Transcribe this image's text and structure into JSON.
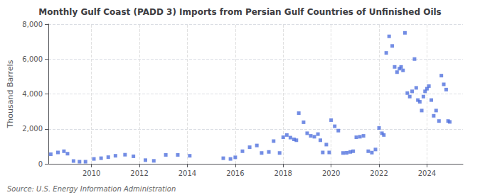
{
  "chart_data": {
    "type": "scatter",
    "title": "Monthly Gulf Coast (PADD 3) Imports from Persian Gulf Countries of Unfinished Oils",
    "ylabel": "Thousand Barrels",
    "annotations": [
      "Source: U.S. Energy Information Administration"
    ],
    "marker": "square",
    "grid": true,
    "xlim": [
      2008.2,
      2025.5
    ],
    "xticks": [
      2010,
      2012,
      2014,
      2016,
      2018,
      2020,
      2022,
      2024
    ],
    "ylim": [
      0,
      8000
    ],
    "yticks": [
      0,
      {
        "value": 2000,
        "label": "2,000"
      },
      {
        "value": 4000,
        "label": "4,000"
      },
      {
        "value": 6000,
        "label": "6,000"
      },
      {
        "value": 8000,
        "label": "8,000"
      }
    ],
    "x": [
      2008.3,
      2008.6,
      2008.85,
      2009.0,
      2009.25,
      2009.5,
      2009.75,
      2010.1,
      2010.4,
      2010.7,
      2011.0,
      2011.4,
      2011.75,
      2012.25,
      2012.6,
      2013.1,
      2013.6,
      2014.1,
      2015.5,
      2015.8,
      2016.0,
      2016.3,
      2016.6,
      2016.9,
      2017.1,
      2017.4,
      2017.6,
      2017.85,
      2018.0,
      2018.15,
      2018.3,
      2018.45,
      2018.55,
      2018.65,
      2018.85,
      2019.0,
      2019.15,
      2019.3,
      2019.45,
      2019.55,
      2019.65,
      2019.8,
      2019.92,
      2020.0,
      2020.15,
      2020.3,
      2020.5,
      2020.65,
      2020.8,
      2020.92,
      2021.05,
      2021.2,
      2021.35,
      2021.55,
      2021.7,
      2021.85,
      2022.0,
      2022.12,
      2022.2,
      2022.3,
      2022.42,
      2022.55,
      2022.65,
      2022.75,
      2022.85,
      2022.92,
      2023.0,
      2023.08,
      2023.18,
      2023.28,
      2023.38,
      2023.48,
      2023.55,
      2023.62,
      2023.7,
      2023.78,
      2023.85,
      2023.92,
      2024.0,
      2024.08,
      2024.18,
      2024.28,
      2024.38,
      2024.5,
      2024.6,
      2024.7,
      2024.8,
      2024.88,
      2024.95
    ],
    "values": [
      550,
      650,
      720,
      580,
      160,
      120,
      120,
      280,
      320,
      380,
      460,
      520,
      430,
      210,
      170,
      510,
      510,
      460,
      320,
      280,
      370,
      720,
      950,
      1050,
      620,
      680,
      1300,
      620,
      1520,
      1650,
      1500,
      1400,
      1350,
      2900,
      2380,
      1750,
      1600,
      1550,
      1700,
      1350,
      650,
      1100,
      650,
      2500,
      2150,
      1900,
      620,
      630,
      680,
      720,
      1520,
      1550,
      1600,
      720,
      640,
      820,
      2050,
      1750,
      1650,
      6350,
      7300,
      6750,
      5550,
      5250,
      5450,
      5550,
      5350,
      7500,
      4050,
      3850,
      4150,
      6000,
      4350,
      3650,
      3550,
      3050,
      3850,
      4150,
      4300,
      4450,
      3650,
      2750,
      3050,
      2450,
      5050,
      4550,
      4250,
      2450,
      2400
    ]
  }
}
